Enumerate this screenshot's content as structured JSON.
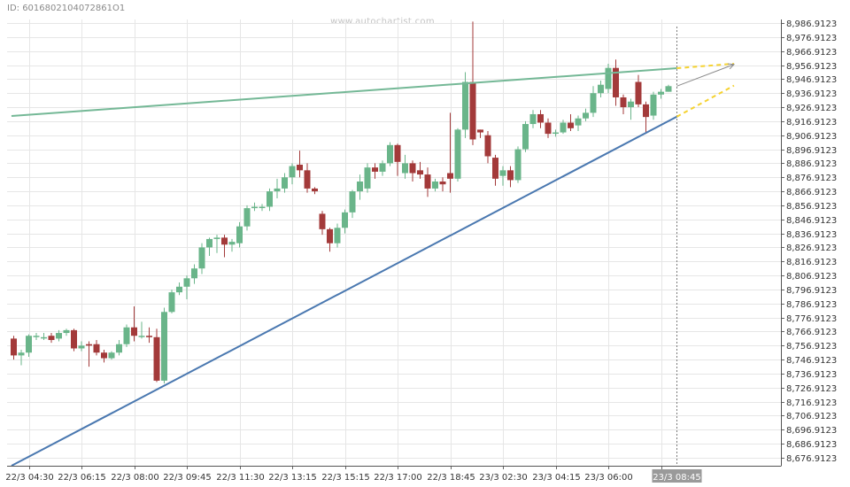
{
  "header": {
    "id_text": "ID: 6016802104072861O1",
    "watermark": "www.autochartist.com"
  },
  "colors": {
    "up": "#6ab58a",
    "down": "#a33a3a",
    "resistance": "#74b896",
    "support": "#4a78b0",
    "forecast": "#f5d230",
    "grid": "#e6e6e6"
  },
  "chart_data": {
    "type": "candlestick",
    "ylim": [
      8671.9123,
      8991.9123
    ],
    "y_ticks": [
      "8,986.9123",
      "8,976.9123",
      "8,966.9123",
      "8,956.9123",
      "8,946.9123",
      "8,936.9123",
      "8,926.9123",
      "8,916.9123",
      "8,906.9123",
      "8,896.9123",
      "8,886.9123",
      "8,876.9123",
      "8,866.9123",
      "8,856.9123",
      "8,846.9123",
      "8,836.9123",
      "8,826.9123",
      "8,816.9123",
      "8,806.9123",
      "8,796.9123",
      "8,786.9123",
      "8,776.9123",
      "8,766.9123",
      "8,756.9123",
      "8,746.9123",
      "8,736.9123",
      "8,726.9123",
      "8,716.9123",
      "8,706.9123",
      "8,696.9123",
      "8,686.9123",
      "8,676.9123"
    ],
    "x_ticks": [
      {
        "index": 2,
        "label": "22/3 04:30"
      },
      {
        "index": 9,
        "label": "22/3 06:15"
      },
      {
        "index": 16,
        "label": "22/3 08:00"
      },
      {
        "index": 23,
        "label": "22/3 09:45"
      },
      {
        "index": 30,
        "label": "22/3 11:30"
      },
      {
        "index": 37,
        "label": "22/3 13:15"
      },
      {
        "index": 44,
        "label": "22/3 15:15"
      },
      {
        "index": 51,
        "label": "22/3 17:00"
      },
      {
        "index": 58,
        "label": "22/3 18:45"
      },
      {
        "index": 65,
        "label": "23/3 02:30"
      },
      {
        "index": 72,
        "label": "23/3 04:15"
      },
      {
        "index": 79,
        "label": "23/3 06:00"
      },
      {
        "index": 86,
        "label": "23/3"
      }
    ],
    "current_label": "23/3 08:45",
    "candles": [
      {
        "o": 8761.9,
        "h": 8763.9,
        "c": 8749.9,
        "l": 8746.9
      },
      {
        "o": 8749.9,
        "h": 8753.9,
        "c": 8751.9,
        "l": 8742.9
      },
      {
        "o": 8751.9,
        "h": 8764.9,
        "c": 8763.9,
        "l": 8748.9
      },
      {
        "o": 8763.9,
        "h": 8765.9,
        "c": 8763.9,
        "l": 8760.9
      },
      {
        "o": 8762.9,
        "h": 8765.9,
        "c": 8762.9,
        "l": 8760.9
      },
      {
        "o": 8763.9,
        "h": 8765.9,
        "c": 8760.9,
        "l": 8758.9
      },
      {
        "o": 8761.9,
        "h": 8767.9,
        "c": 8765.9,
        "l": 8759.9
      },
      {
        "o": 8765.9,
        "h": 8768.9,
        "c": 8767.9,
        "l": 8763.9
      },
      {
        "o": 8767.9,
        "h": 8768.9,
        "c": 8754.9,
        "l": 8752.9
      },
      {
        "o": 8754.9,
        "h": 8759.9,
        "c": 8756.9,
        "l": 8752.9
      },
      {
        "o": 8757.9,
        "h": 8759.9,
        "c": 8756.9,
        "l": 8741.9
      },
      {
        "o": 8757.9,
        "h": 8760.9,
        "c": 8751.9,
        "l": 8749.9
      },
      {
        "o": 8751.9,
        "h": 8753.9,
        "c": 8747.9,
        "l": 8744.9
      },
      {
        "o": 8747.9,
        "h": 8752.9,
        "c": 8751.9,
        "l": 8746.9
      },
      {
        "o": 8751.9,
        "h": 8760.9,
        "c": 8757.9,
        "l": 8749.9
      },
      {
        "o": 8757.9,
        "h": 8771.9,
        "c": 8769.9,
        "l": 8755.9
      },
      {
        "o": 8769.9,
        "h": 8784.9,
        "c": 8763.9,
        "l": 8759.9
      },
      {
        "o": 8763.9,
        "h": 8773.9,
        "c": 8763.9,
        "l": 8761.9
      },
      {
        "o": 8763.9,
        "h": 8769.9,
        "c": 8762.9,
        "l": 8758.9
      },
      {
        "o": 8762.9,
        "h": 8768.9,
        "c": 8731.9,
        "l": 8730.9
      },
      {
        "o": 8731.9,
        "h": 8783.9,
        "c": 8780.9,
        "l": 8729.9
      },
      {
        "o": 8780.9,
        "h": 8796.9,
        "c": 8794.9,
        "l": 8779.9
      },
      {
        "o": 8794.9,
        "h": 8801.9,
        "c": 8798.9,
        "l": 8792.9
      },
      {
        "o": 8798.9,
        "h": 8806.9,
        "c": 8804.9,
        "l": 8789.9
      },
      {
        "o": 8804.9,
        "h": 8814.9,
        "c": 8811.9,
        "l": 8800.9
      },
      {
        "o": 8811.9,
        "h": 8829.9,
        "c": 8826.9,
        "l": 8807.9
      },
      {
        "o": 8826.9,
        "h": 8833.9,
        "c": 8832.9,
        "l": 8820.9
      },
      {
        "o": 8832.9,
        "h": 8835.9,
        "c": 8833.9,
        "l": 8822.9
      },
      {
        "o": 8833.9,
        "h": 8835.9,
        "c": 8828.9,
        "l": 8819.9
      },
      {
        "o": 8828.9,
        "h": 8832.9,
        "c": 8830.9,
        "l": 8823.9
      },
      {
        "o": 8829.9,
        "h": 8844.9,
        "c": 8841.9,
        "l": 8826.9
      },
      {
        "o": 8841.9,
        "h": 8856.9,
        "c": 8854.9,
        "l": 8838.9
      },
      {
        "o": 8854.9,
        "h": 8858.9,
        "c": 8855.9,
        "l": 8852.9
      },
      {
        "o": 8855.9,
        "h": 8857.9,
        "c": 8855.9,
        "l": 8852.9
      },
      {
        "o": 8855.9,
        "h": 8868.9,
        "c": 8866.9,
        "l": 8852.9
      },
      {
        "o": 8866.9,
        "h": 8875.9,
        "c": 8868.9,
        "l": 8861.9
      },
      {
        "o": 8868.9,
        "h": 8879.9,
        "c": 8876.9,
        "l": 8865.9
      },
      {
        "o": 8876.9,
        "h": 8886.9,
        "c": 8884.9,
        "l": 8871.9
      },
      {
        "o": 8885.9,
        "h": 8895.9,
        "c": 8881.9,
        "l": 8876.9
      },
      {
        "o": 8881.9,
        "h": 8886.9,
        "c": 8868.9,
        "l": 8865.9
      },
      {
        "o": 8868.9,
        "h": 8869.9,
        "c": 8866.9,
        "l": 8864.9
      },
      {
        "o": 8850.9,
        "h": 8852.9,
        "c": 8839.9,
        "l": 8835.9
      },
      {
        "o": 8839.9,
        "h": 8840.9,
        "c": 8829.9,
        "l": 8823.9
      },
      {
        "o": 8829.9,
        "h": 8843.9,
        "c": 8840.9,
        "l": 8826.9
      },
      {
        "o": 8840.9,
        "h": 8853.9,
        "c": 8851.9,
        "l": 8836.9
      },
      {
        "o": 8851.9,
        "h": 8867.9,
        "c": 8866.9,
        "l": 8847.9
      },
      {
        "o": 8866.9,
        "h": 8878.9,
        "c": 8873.9,
        "l": 8860.9
      },
      {
        "o": 8868.9,
        "h": 8886.9,
        "c": 8883.9,
        "l": 8865.9
      },
      {
        "o": 8883.9,
        "h": 8886.9,
        "c": 8880.9,
        "l": 8875.9
      },
      {
        "o": 8880.9,
        "h": 8888.9,
        "c": 8886.9,
        "l": 8877.9
      },
      {
        "o": 8886.9,
        "h": 8901.9,
        "c": 8899.9,
        "l": 8884.9
      },
      {
        "o": 8899.9,
        "h": 8900.9,
        "c": 8887.9,
        "l": 8877.9
      },
      {
        "o": 8879.9,
        "h": 8892.9,
        "c": 8886.9,
        "l": 8875.9
      },
      {
        "o": 8886.9,
        "h": 8888.9,
        "c": 8879.9,
        "l": 8873.9
      },
      {
        "o": 8881.9,
        "h": 8887.9,
        "c": 8878.9,
        "l": 8875.9
      },
      {
        "o": 8878.9,
        "h": 8883.9,
        "c": 8868.9,
        "l": 8862.9
      },
      {
        "o": 8868.9,
        "h": 8875.9,
        "c": 8873.9,
        "l": 8866.9
      },
      {
        "o": 8873.9,
        "h": 8876.9,
        "c": 8871.9,
        "l": 8866.9
      },
      {
        "o": 8879.9,
        "h": 8922.9,
        "c": 8875.9,
        "l": 8865.9
      },
      {
        "o": 8875.9,
        "h": 8911.9,
        "c": 8910.9,
        "l": 8873.9
      },
      {
        "o": 8910.9,
        "h": 8951.9,
        "c": 8944.9,
        "l": 8904.9
      },
      {
        "o": 8944.9,
        "h": 8987.9,
        "c": 8903.9,
        "l": 8899.9
      },
      {
        "o": 8910.9,
        "h": 8910.9,
        "c": 8908.9,
        "l": 8904.9
      },
      {
        "o": 8906.9,
        "h": 8909.9,
        "c": 8891.9,
        "l": 8886.9
      },
      {
        "o": 8890.9,
        "h": 8892.9,
        "c": 8875.9,
        "l": 8870.9
      },
      {
        "o": 8877.9,
        "h": 8884.9,
        "c": 8881.9,
        "l": 8870.9
      },
      {
        "o": 8881.9,
        "h": 8884.9,
        "c": 8874.9,
        "l": 8869.9
      },
      {
        "o": 8874.9,
        "h": 8898.9,
        "c": 8896.9,
        "l": 8872.9
      },
      {
        "o": 8896.9,
        "h": 8916.9,
        "c": 8914.9,
        "l": 8894.9
      },
      {
        "o": 8914.9,
        "h": 8924.9,
        "c": 8921.9,
        "l": 8911.9
      },
      {
        "o": 8921.9,
        "h": 8924.9,
        "c": 8915.9,
        "l": 8911.9
      },
      {
        "o": 8915.9,
        "h": 8918.9,
        "c": 8907.9,
        "l": 8904.9
      },
      {
        "o": 8908.9,
        "h": 8910.9,
        "c": 8908.9,
        "l": 8905.9
      },
      {
        "o": 8908.9,
        "h": 8917.9,
        "c": 8915.9,
        "l": 8907.9
      },
      {
        "o": 8915.9,
        "h": 8921.9,
        "c": 8911.9,
        "l": 8909.9
      },
      {
        "o": 8913.9,
        "h": 8920.9,
        "c": 8918.9,
        "l": 8909.9
      },
      {
        "o": 8918.9,
        "h": 8925.9,
        "c": 8922.9,
        "l": 8916.9
      },
      {
        "o": 8922.9,
        "h": 8941.9,
        "c": 8936.9,
        "l": 8919.9
      },
      {
        "o": 8936.9,
        "h": 8945.9,
        "c": 8942.9,
        "l": 8933.9
      },
      {
        "o": 8939.9,
        "h": 8957.9,
        "c": 8954.9,
        "l": 8936.9
      },
      {
        "o": 8954.9,
        "h": 8960.9,
        "c": 8933.9,
        "l": 8927.9
      },
      {
        "o": 8933.9,
        "h": 8935.9,
        "c": 8926.9,
        "l": 8921.9
      },
      {
        "o": 8926.9,
        "h": 8932.9,
        "c": 8930.9,
        "l": 8917.9
      },
      {
        "o": 8944.9,
        "h": 8949.9,
        "c": 8928.9,
        "l": 8926.9
      },
      {
        "o": 8928.9,
        "h": 8930.9,
        "c": 8919.9,
        "l": 8907.9
      },
      {
        "o": 8920.9,
        "h": 8937.9,
        "c": 8935.9,
        "l": 8917.9
      },
      {
        "o": 8935.9,
        "h": 8939.9,
        "c": 8937.9,
        "l": 8932.9
      },
      {
        "o": 8937.9,
        "h": 8942.9,
        "c": 8941.9,
        "l": 8937.9
      }
    ],
    "resistance_line": {
      "from": {
        "index": -0.3,
        "price": 8920.6
      },
      "to": {
        "index": 88.1,
        "price": 8954.7
      }
    },
    "support_line": {
      "from": {
        "index": -0.3,
        "price": 8671.2
      },
      "to": {
        "index": 88.1,
        "price": 8920.1
      }
    },
    "forecast_lines": [
      {
        "from": {
          "index": 88.1,
          "price": 8954.7
        },
        "to": {
          "index": 95.7,
          "price": 8957.9
        }
      },
      {
        "from": {
          "index": 88.1,
          "price": 8920.1
        },
        "to": {
          "index": 95.7,
          "price": 8942.3
        }
      }
    ],
    "projection_arrow": {
      "from": {
        "index": 88.1,
        "price": 8941.9
      },
      "to": {
        "index": 95.7,
        "price": 8957.4
      }
    },
    "current_index": 88.1
  }
}
